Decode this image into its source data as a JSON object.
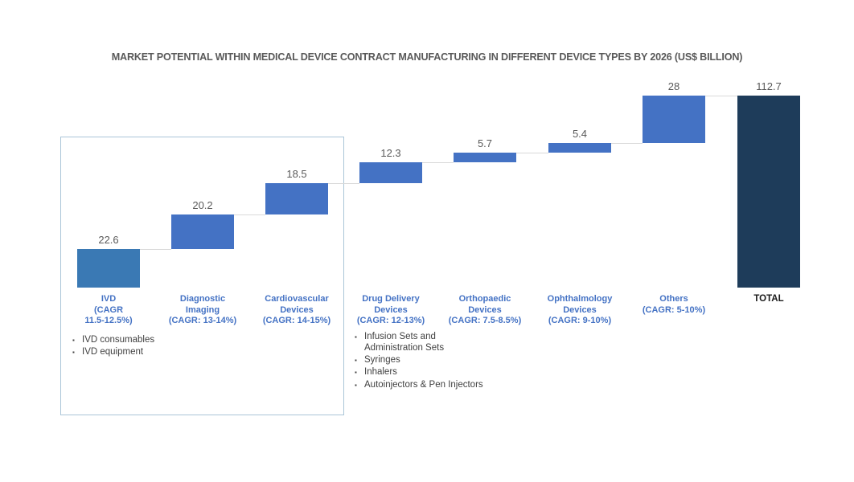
{
  "title": "MARKET POTENTIAL WITHIN MEDICAL DEVICE CONTRACT MANUFACTURING IN DIFFERENT DEVICE TYPES BY 2026 (US$ BILLION)",
  "colors": {
    "bar_first": "#3A79B4",
    "bar_default": "#4472C4",
    "bar_total": "#1E3C5A",
    "connector": "#D9D9D9",
    "value_label": "#595959",
    "category_label": "#4472C4",
    "total_label": "#1A1A1A",
    "note_text": "#404040",
    "box_border": "#AAC5D8",
    "title_text": "#595959"
  },
  "chart_data": {
    "type": "bar",
    "subtype": "waterfall",
    "title": "MARKET POTENTIAL WITHIN MEDICAL DEVICE CONTRACT MANUFACTURING IN DIFFERENT DEVICE TYPES BY 2026 (US$ BILLION)",
    "unit": "US$ Billion",
    "ylim": [
      0,
      112.7
    ],
    "grid": false,
    "legend": false,
    "categories": [
      "IVD (CAGR 11.5-12.5%)",
      "Diagnostic Imaging (CAGR: 13-14%)",
      "Cardiovascular Devices (CAGR: 14-15%)",
      "Drug Delivery Devices (CAGR: 12-13%)",
      "Orthopaedic Devices (CAGR: 7.5-8.5%)",
      "Ophthalmology Devices (CAGR: 9-10%)",
      "Others (CAGR: 5-10%)",
      "TOTAL"
    ],
    "values": [
      22.6,
      20.2,
      18.5,
      12.3,
      5.7,
      5.4,
      28,
      112.7
    ],
    "points": [
      {
        "id": "ivd",
        "label_lines": [
          "IVD",
          "(CAGR",
          "11.5-12.5%)"
        ],
        "value": 22.6,
        "display": "22.6",
        "role": "first"
      },
      {
        "id": "diagnostic-imaging",
        "label_lines": [
          "Diagnostic",
          "Imaging",
          "(CAGR: 13-14%)"
        ],
        "value": 20.2,
        "display": "20.2",
        "role": "item"
      },
      {
        "id": "cardiovascular-devices",
        "label_lines": [
          "Cardiovascular",
          "Devices",
          "(CAGR: 14-15%)"
        ],
        "value": 18.5,
        "display": "18.5",
        "role": "item"
      },
      {
        "id": "drug-delivery-devices",
        "label_lines": [
          "Drug Delivery",
          "Devices",
          "(CAGR: 12-13%)"
        ],
        "value": 12.3,
        "display": "12.3",
        "role": "item"
      },
      {
        "id": "orthopaedic-devices",
        "label_lines": [
          "Orthopaedic",
          "Devices",
          "(CAGR: 7.5-8.5%)"
        ],
        "value": 5.7,
        "display": "5.7",
        "role": "item"
      },
      {
        "id": "ophthalmology-devices",
        "label_lines": [
          "Ophthalmology",
          "Devices",
          "(CAGR: 9-10%)"
        ],
        "value": 5.4,
        "display": "5.4",
        "role": "item"
      },
      {
        "id": "others",
        "label_lines": [
          "Others",
          "(CAGR: 5-10%)"
        ],
        "value": 28,
        "display": "28",
        "role": "item"
      },
      {
        "id": "total",
        "label_lines": [
          "TOTAL"
        ],
        "value": 112.7,
        "display": "112.7",
        "role": "total"
      }
    ],
    "annotations": [
      {
        "anchor": "ivd",
        "items": [
          "IVD consumables",
          "IVD equipment"
        ]
      },
      {
        "anchor": "drug-delivery-devices",
        "items": [
          "Infusion Sets and Administration Sets",
          "Syringes",
          "Inhalers",
          "Autoinjectors & Pen Injectors"
        ]
      }
    ]
  }
}
